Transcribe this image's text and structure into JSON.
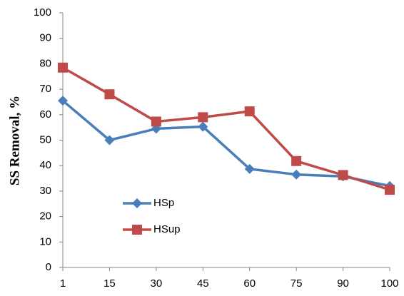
{
  "chart_data": {
    "type": "line",
    "ylabel": "SS  Removal, %",
    "categories": [
      "1",
      "15",
      "30",
      "45",
      "60",
      "75",
      "90",
      "100"
    ],
    "series": [
      {
        "name": "HSp",
        "color": "#4a7ebb",
        "marker": "diamond",
        "values": [
          65.5,
          50,
          54.5,
          55.3,
          38.7,
          36.5,
          35.8,
          32
        ]
      },
      {
        "name": "HSup",
        "color": "#be4b48",
        "marker": "square",
        "values": [
          78.5,
          68,
          57.3,
          59,
          61.3,
          41.8,
          36.3,
          30.5
        ]
      }
    ],
    "ylim": [
      0,
      100
    ],
    "yticks": [
      0,
      10,
      20,
      30,
      40,
      50,
      60,
      70,
      80,
      90,
      100
    ],
    "grid": false,
    "legend": "left"
  }
}
